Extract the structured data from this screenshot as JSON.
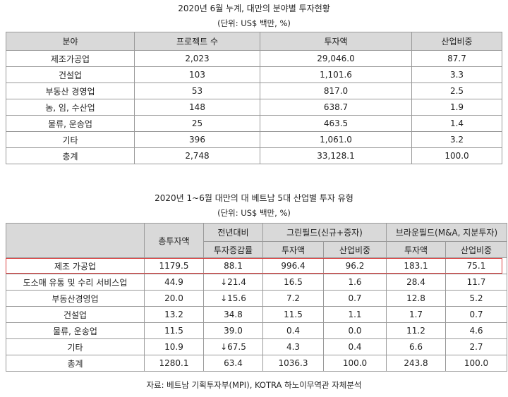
{
  "table1": {
    "title": "2020년 6월 누계, 대만의 분야별 투자현황",
    "unit": "(단위: US$ 백만, %)",
    "headers": [
      "분야",
      "프로젝트 수",
      "투자액",
      "산업비중"
    ],
    "rows": [
      [
        "제조가공업",
        "2,023",
        "29,046.0",
        "87.7"
      ],
      [
        "건설업",
        "103",
        "1,101.6",
        "3.3"
      ],
      [
        "부동산 경영업",
        "53",
        "817.0",
        "2.5"
      ],
      [
        "농, 임, 수산업",
        "148",
        "638.7",
        "1.9"
      ],
      [
        "물류, 운송업",
        "25",
        "463.5",
        "1.4"
      ],
      [
        "기타",
        "396",
        "1,061.0",
        "3.2"
      ],
      [
        "총계",
        "2,748",
        "33,128.1",
        "100.0"
      ]
    ]
  },
  "table2": {
    "title": "2020년 1~6월 대만의 대 베트남 5대 산업별 투자 유형",
    "unit": "(단위: US$ 백만, %)",
    "headers": {
      "total": "총투자액",
      "yoy_line1": "전년대비",
      "yoy_line2": "투자증감률",
      "green": "그린필드(신규+증자)",
      "brown": "브라운필드(M&A, 지분투자)",
      "amount": "투자액",
      "share": "산업비중"
    },
    "rows": [
      [
        "제조 가공업",
        "1179.5",
        "88.1",
        "996.4",
        "96.2",
        "183.1",
        "75.1"
      ],
      [
        "도소매 유통 및 수리 서비스업",
        "44.9",
        "↓21.4",
        "16.5",
        "1.6",
        "28.4",
        "11.7"
      ],
      [
        "부동산경영업",
        "20.0",
        "↓15.6",
        "7.2",
        "0.7",
        "12.8",
        "5.2"
      ],
      [
        "건설업",
        "13.2",
        "34.8",
        "11.5",
        "1.1",
        "1.7",
        "0.7"
      ],
      [
        "물류, 운송업",
        "11.5",
        "39.0",
        "0.4",
        "0.0",
        "11.2",
        "4.6"
      ],
      [
        "기타",
        "10.9",
        "↓67.5",
        "4.3",
        "0.4",
        "6.6",
        "2.7"
      ],
      [
        "총계",
        "1280.1",
        "63.4",
        "1036.3",
        "100.0",
        "243.8",
        "100.0"
      ]
    ],
    "highlight_color": "#d94040"
  },
  "footer": "자료: 베트남 기획투자부(MPI), KOTRA 하노이무역관 자체분석"
}
